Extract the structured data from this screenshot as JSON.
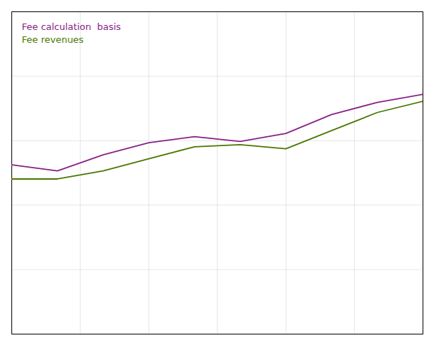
{
  "chart_data": {
    "type": "line",
    "x": [
      0,
      1,
      2,
      3,
      4,
      5,
      6,
      7,
      8,
      9
    ],
    "series": [
      {
        "name": "Fee calculation  basis",
        "color": "#882288",
        "values": [
          4.2,
          4.05,
          4.45,
          4.75,
          4.9,
          4.78,
          4.98,
          5.45,
          5.75,
          5.95
        ]
      },
      {
        "name": "Fee revenues",
        "color": "#4A7800",
        "values": [
          3.85,
          3.85,
          4.05,
          4.35,
          4.65,
          4.7,
          4.6,
          5.05,
          5.5,
          5.78
        ]
      }
    ],
    "xlim": [
      0,
      9
    ],
    "ylim": [
      0,
      8
    ],
    "xticks": [
      0,
      1.5,
      3,
      4.5,
      6,
      7.5,
      9
    ],
    "yticks": [
      0,
      1.6,
      3.2,
      4.8,
      6.4,
      8
    ],
    "grid": true,
    "tick_labels": false
  }
}
